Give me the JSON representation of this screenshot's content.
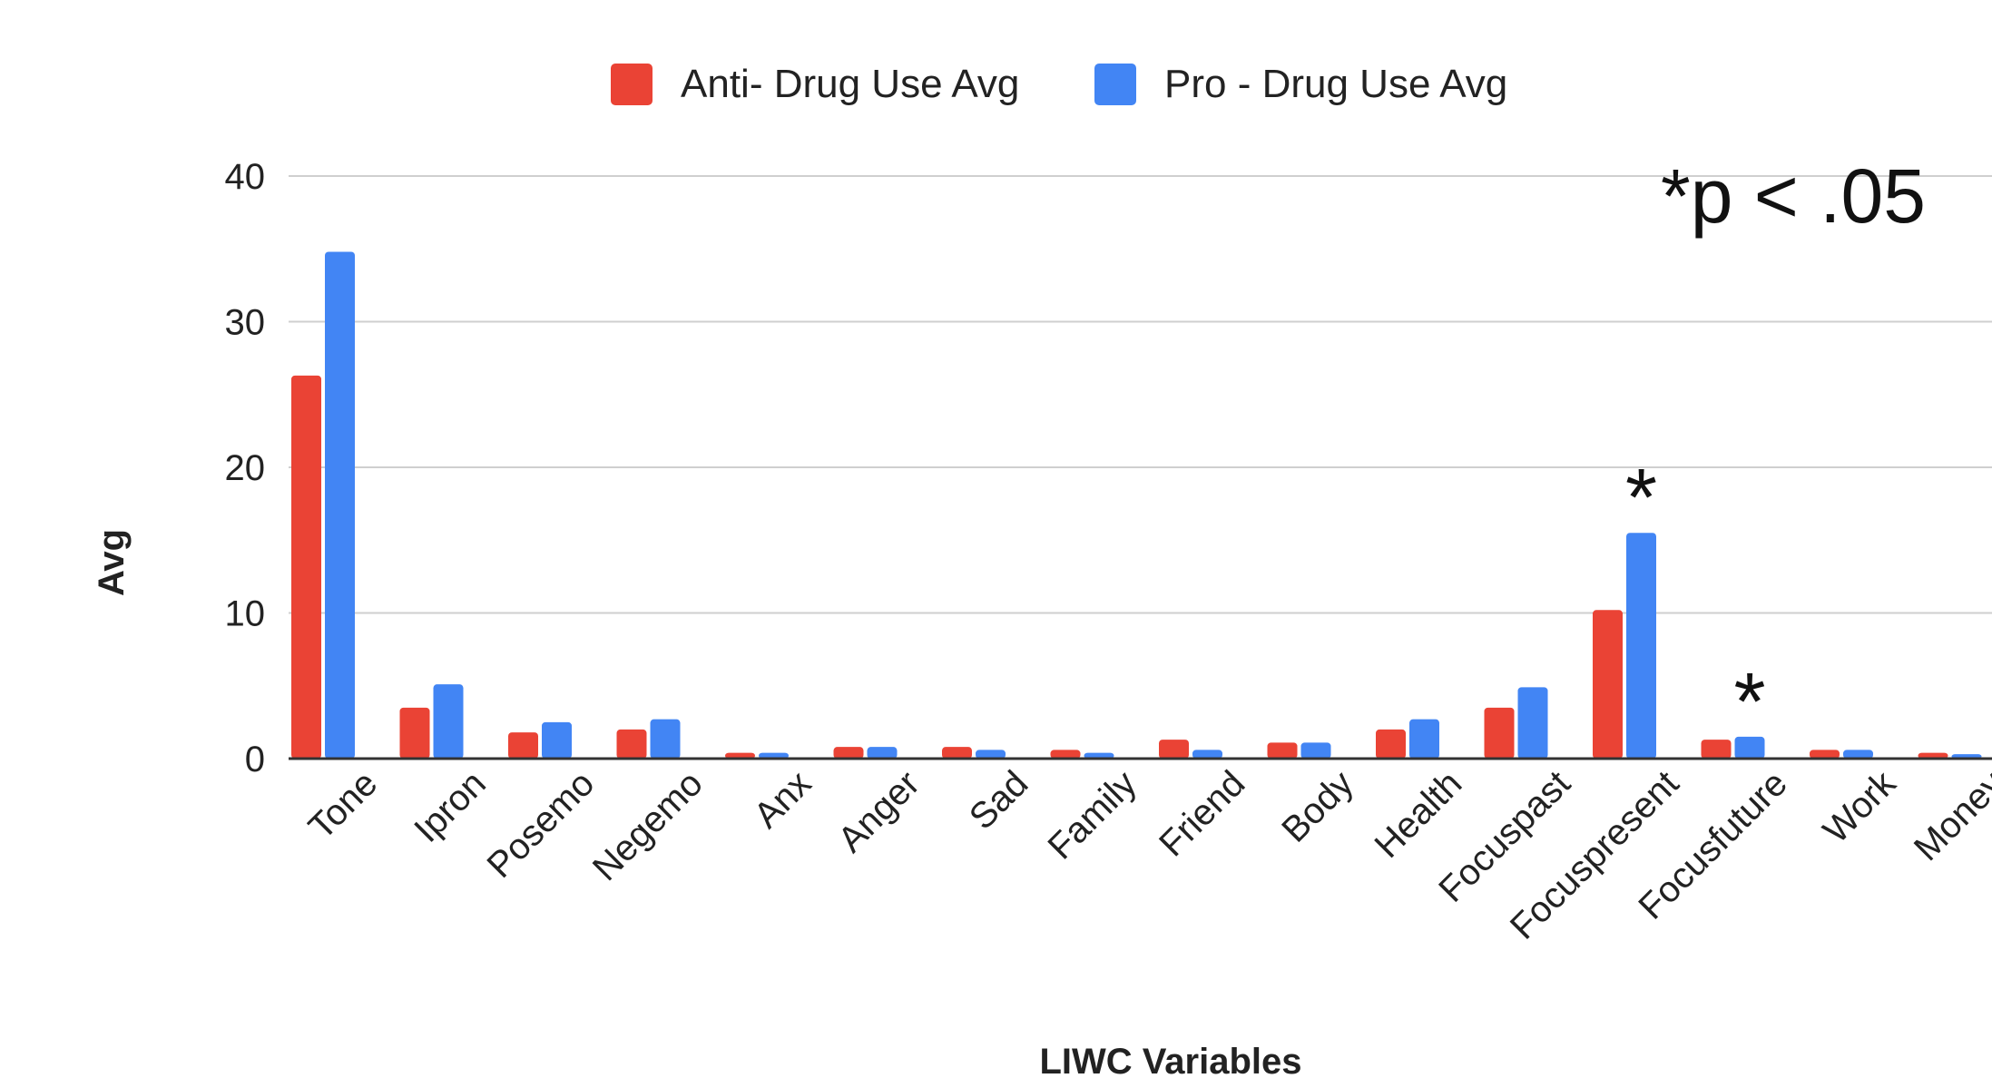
{
  "chart_data": {
    "type": "bar",
    "title": "",
    "xlabel": "LIWC Variables",
    "ylabel": "Avg",
    "ylim": [
      0,
      40
    ],
    "yticks": [
      0,
      10,
      20,
      30,
      40
    ],
    "grid": true,
    "legend_placement": "top-center",
    "categories": [
      "Tone",
      "Ipron",
      "Posemo",
      "Negemo",
      "Anx",
      "Anger",
      "Sad",
      "Family",
      "Friend",
      "Body",
      "Health",
      "Focuspast",
      "Focuspresent",
      "Focusfuture",
      "Work",
      "Money"
    ],
    "series": [
      {
        "name": "Anti- Drug Use Avg",
        "color": "#ea4335",
        "values": [
          26.3,
          3.5,
          1.8,
          2.0,
          0.4,
          0.8,
          0.8,
          0.6,
          1.3,
          1.1,
          2.0,
          3.5,
          10.2,
          1.3,
          0.6,
          0.4
        ]
      },
      {
        "name": "Pro - Drug Use Avg",
        "color": "#4285f4",
        "values": [
          34.8,
          5.1,
          2.5,
          2.7,
          0.4,
          0.8,
          0.6,
          0.4,
          0.6,
          1.1,
          2.7,
          4.9,
          15.5,
          1.5,
          0.6,
          0.3
        ]
      }
    ],
    "annotations": [
      {
        "text": "*p < .05",
        "kind": "note"
      },
      {
        "text": "*",
        "kind": "significance",
        "category": "Focuspresent"
      },
      {
        "text": "*",
        "kind": "significance",
        "category": "Focusfuture"
      }
    ]
  }
}
